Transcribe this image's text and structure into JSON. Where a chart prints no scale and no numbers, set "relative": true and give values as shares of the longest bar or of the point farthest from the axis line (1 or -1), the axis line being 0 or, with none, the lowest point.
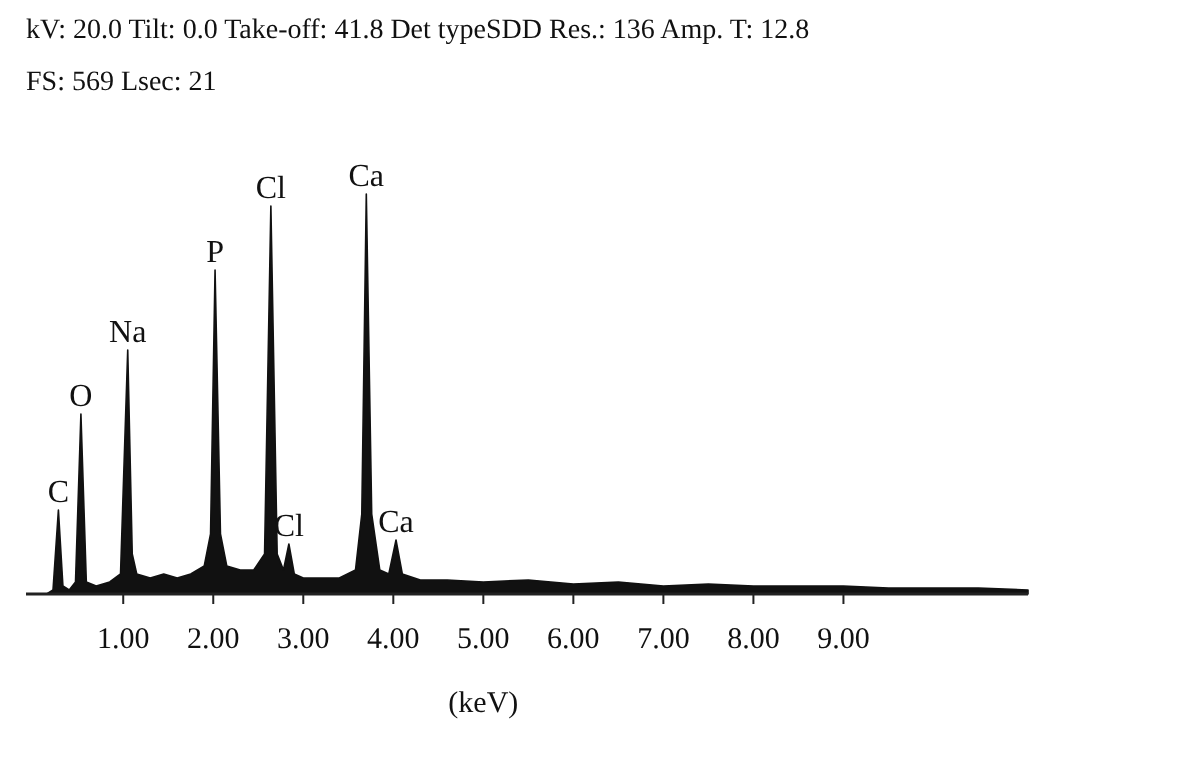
{
  "chart_data": {
    "type": "area",
    "title": "kV: 20.0  Tilt: 0.0  Take-off: 41.8  Det typeSDD  Res.: 136  Amp. T: 12.8",
    "subtitle": "FS: 569  Lsec: 21",
    "xlabel": "(keV)",
    "relative": true,
    "color": "#111111",
    "x": [
      0.15,
      0.22,
      0.28,
      0.33,
      0.4,
      0.47,
      0.53,
      0.59,
      0.7,
      0.85,
      0.97,
      1.05,
      1.1,
      1.15,
      1.3,
      1.45,
      1.6,
      1.75,
      1.9,
      1.97,
      2.02,
      2.08,
      2.15,
      2.3,
      2.45,
      2.57,
      2.64,
      2.71,
      2.78,
      2.84,
      2.9,
      3.0,
      3.2,
      3.4,
      3.58,
      3.65,
      3.7,
      3.76,
      3.85,
      3.95,
      4.03,
      4.1,
      4.3,
      4.6,
      5.0,
      5.5,
      6.0,
      6.5,
      7.0,
      7.5,
      8.0,
      8.5,
      9.0,
      9.5,
      10.0,
      10.5,
      11.05
    ],
    "values": [
      0,
      0.01,
      0.21,
      0.02,
      0.01,
      0.03,
      0.45,
      0.03,
      0.02,
      0.03,
      0.05,
      0.61,
      0.1,
      0.05,
      0.04,
      0.05,
      0.04,
      0.05,
      0.07,
      0.15,
      0.81,
      0.15,
      0.07,
      0.06,
      0.06,
      0.1,
      0.97,
      0.1,
      0.06,
      0.125,
      0.05,
      0.04,
      0.04,
      0.04,
      0.06,
      0.2,
      1,
      0.2,
      0.06,
      0.05,
      0.135,
      0.05,
      0.035,
      0.035,
      0.03,
      0.035,
      0.025,
      0.03,
      0.02,
      0.025,
      0.02,
      0.02,
      0.02,
      0.015,
      0.015,
      0.015,
      0.01
    ],
    "xlim": [
      -0.08,
      11.05
    ],
    "xticks": [
      {
        "value": 1,
        "label": "1.00"
      },
      {
        "value": 2,
        "label": "2.00"
      },
      {
        "value": 3,
        "label": "3.00"
      },
      {
        "value": 4,
        "label": "4.00"
      },
      {
        "value": 5,
        "label": "5.00"
      },
      {
        "value": 6,
        "label": "6.00"
      },
      {
        "value": 7,
        "label": "7.00"
      },
      {
        "value": 8,
        "label": "8.00"
      },
      {
        "value": 9,
        "label": "9.00"
      }
    ],
    "annotations": [
      {
        "text": "C",
        "x": 0.28,
        "y": 0.21
      },
      {
        "text": "O",
        "x": 0.53,
        "y": 0.45
      },
      {
        "text": "Na",
        "x": 1.05,
        "y": 0.61
      },
      {
        "text": "P",
        "x": 2.02,
        "y": 0.81
      },
      {
        "text": "Cl",
        "x": 2.64,
        "y": 0.97
      },
      {
        "text": "Cl",
        "x": 2.84,
        "y": 0.125
      },
      {
        "text": "Ca",
        "x": 3.7,
        "y": 1
      },
      {
        "text": "Ca",
        "x": 4.03,
        "y": 0.135
      }
    ]
  }
}
